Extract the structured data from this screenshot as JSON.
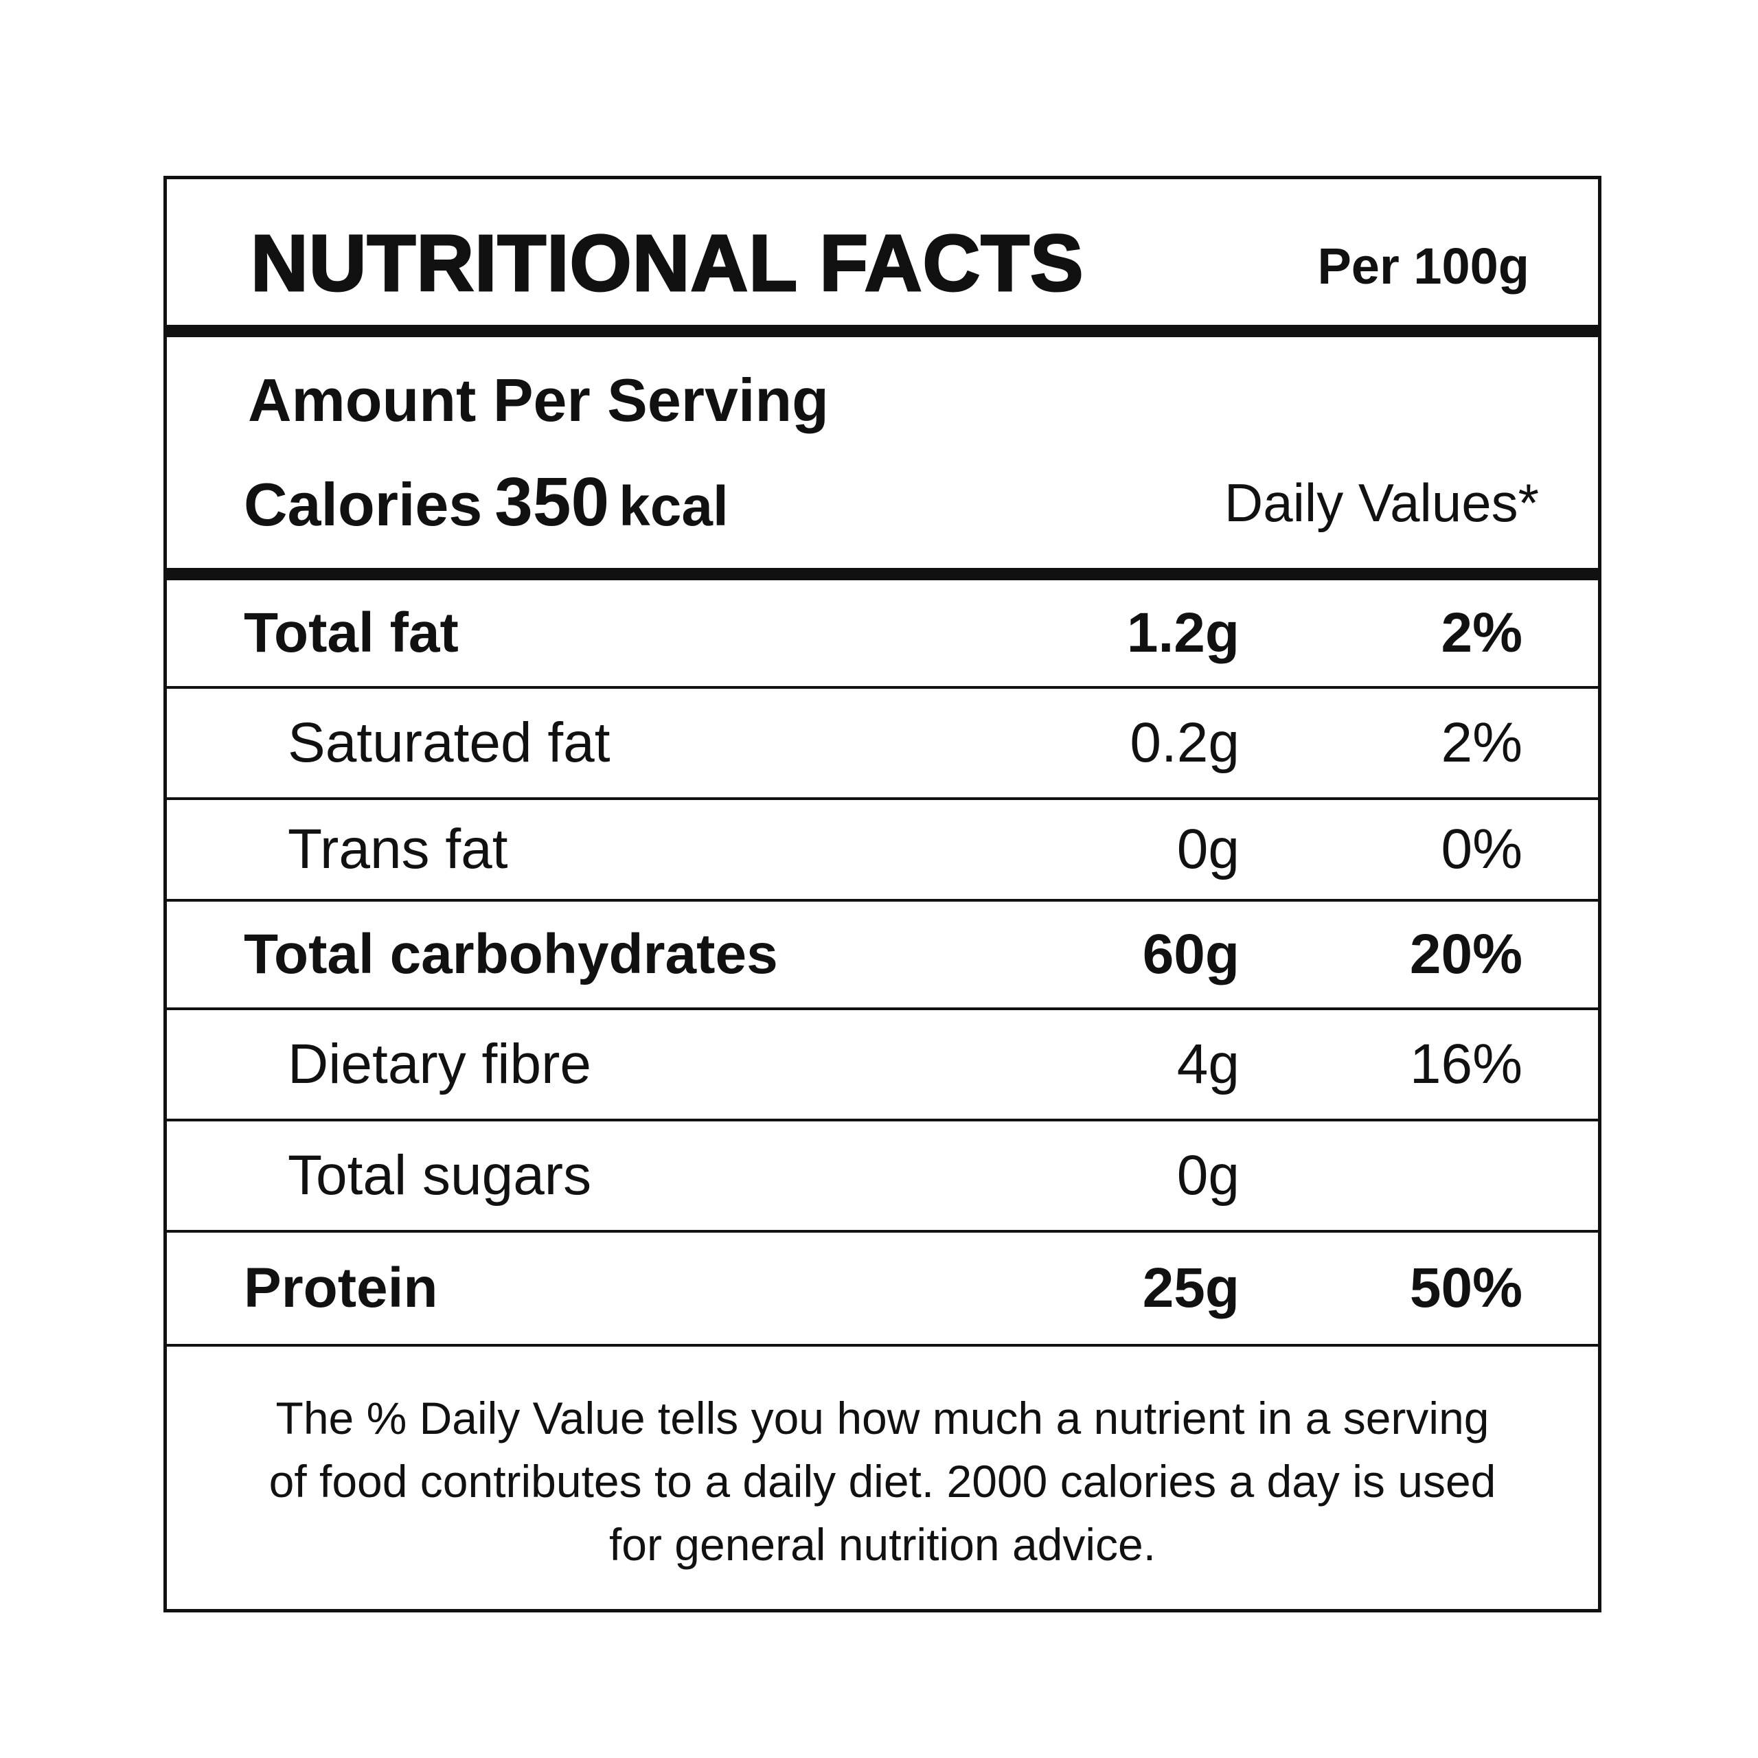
{
  "label": {
    "title": "NUTRITIONAL FACTS",
    "per": "Per 100g",
    "serving_heading": "Amount Per Serving",
    "calories_label": "Calories",
    "calories_value": "350",
    "calories_unit": "kcal",
    "daily_values_heading": "Daily Values*"
  },
  "nutrients": [
    {
      "name": "Total fat",
      "amount": "1.2g",
      "dv": "2%",
      "bold": true
    },
    {
      "name": "Saturated fat",
      "amount": "0.2g",
      "dv": "2%",
      "bold": false
    },
    {
      "name": "Trans fat",
      "amount": "0g",
      "dv": "0%",
      "bold": false
    },
    {
      "name": "Total carbohydrates",
      "amount": "60g",
      "dv": "20%",
      "bold": true
    },
    {
      "name": "Dietary fibre",
      "amount": "4g",
      "dv": "16%",
      "bold": false
    },
    {
      "name": "Total sugars",
      "amount": "0g",
      "dv": "",
      "bold": false
    },
    {
      "name": "Protein",
      "amount": "25g",
      "dv": "50%",
      "bold": true
    }
  ],
  "footnote": {
    "line1": "The % Daily Value tells you how much a nutrient in a serving",
    "line2": "of food contributes to a daily diet. 2000 calories a day is used",
    "line3": "for general nutrition advice."
  }
}
